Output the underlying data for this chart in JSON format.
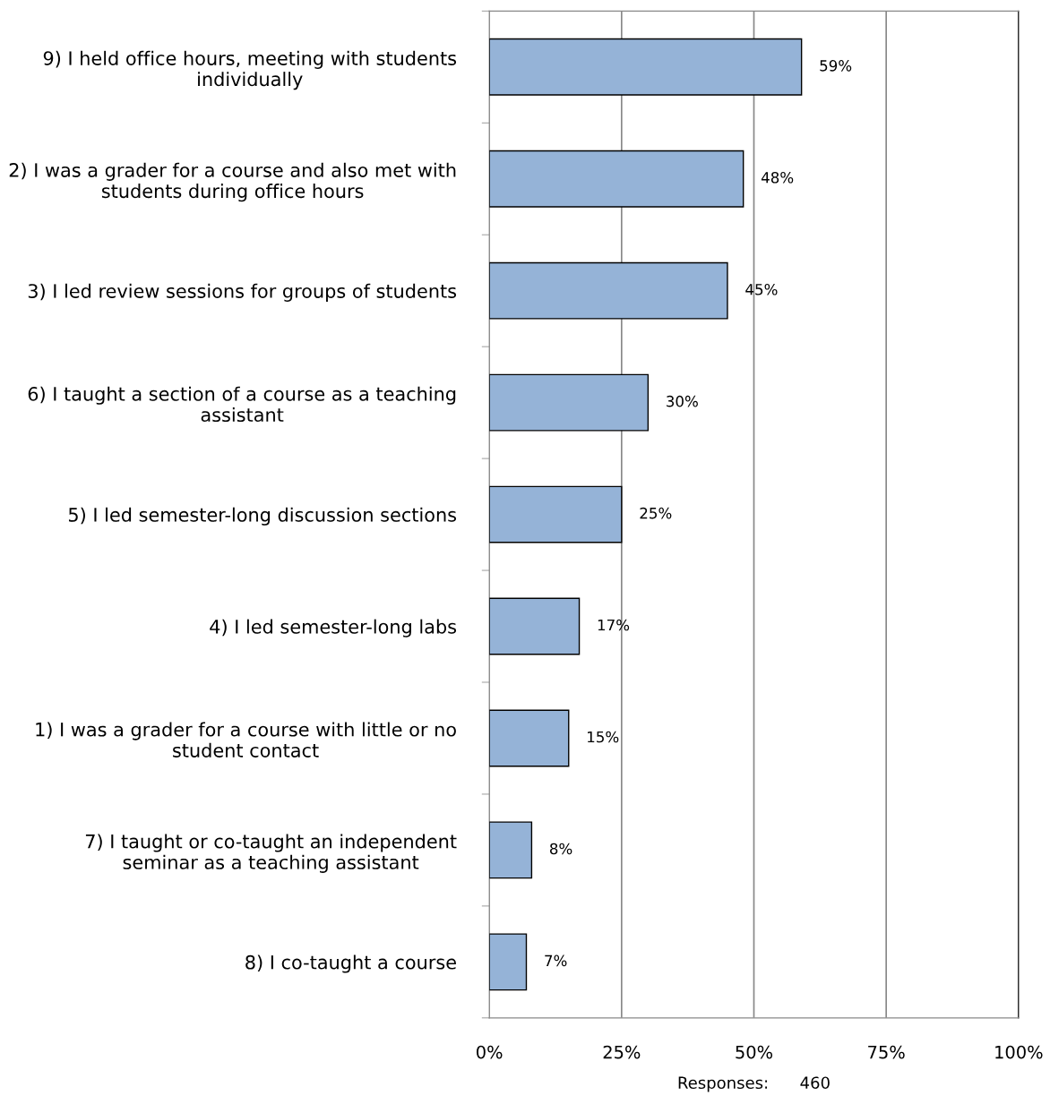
{
  "chart_data": {
    "type": "bar",
    "orientation": "horizontal",
    "categories": [
      "9) I held office hours, meeting with students\nindividually",
      "2) I was a grader for a course and also met with\nstudents during office hours",
      "3) I led review sessions for groups of students",
      "6) I taught a section of a course as a teaching\nassistant",
      "5) I led semester-long discussion sections",
      "4) I led semester-long labs",
      "1) I was a grader for a course with little or no\nstudent contact",
      "7) I taught or co-taught an independent\nseminar as a teaching assistant",
      "8) I co-taught a course"
    ],
    "values": [
      59,
      48,
      45,
      30,
      25,
      17,
      15,
      8,
      7
    ],
    "value_labels": [
      "59%",
      "48%",
      "45%",
      "30%",
      "25%",
      "17%",
      "15%",
      "8%",
      "7%"
    ],
    "color": "#95b3d7",
    "xlim": [
      0,
      100
    ],
    "xticks": [
      {
        "value": 0,
        "label": "0%"
      },
      {
        "value": 25,
        "label": "25%"
      },
      {
        "value": 50,
        "label": "50%"
      },
      {
        "value": 75,
        "label": "75%"
      },
      {
        "value": 100,
        "label": "100%"
      }
    ],
    "grid": "x",
    "annotations": [
      "Responses:      460"
    ]
  }
}
